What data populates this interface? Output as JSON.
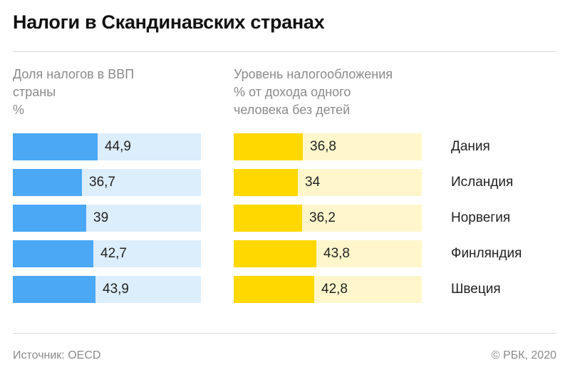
{
  "title": "Налоги в Скандинавских странах",
  "left_subtitle": [
    "Доля налогов в ВВП",
    "страны",
    "%"
  ],
  "right_subtitle": [
    "Уровень налогообложения",
    "% от дохода одного",
    "человека без детей"
  ],
  "source": "Источник: OECD",
  "copyright": "© РБК, 2020",
  "colors": {
    "left_fill": "#4aa8f5",
    "left_track": "#dcedfb",
    "right_fill": "#ffd800",
    "right_track": "#fff6cc"
  },
  "chart_data": [
    {
      "type": "bar",
      "orientation": "horizontal",
      "title": "Доля налогов в ВВП страны, %",
      "categories": [
        "Дания",
        "Исландия",
        "Норвегия",
        "Финляндия",
        "Швеция"
      ],
      "values": [
        44.9,
        36.7,
        39,
        42.7,
        43.9
      ],
      "labels": [
        "44,9",
        "36,7",
        "39",
        "42,7",
        "43,9"
      ]
    },
    {
      "type": "bar",
      "orientation": "horizontal",
      "title": "Уровень налогообложения, % от дохода одного человека без детей",
      "categories": [
        "Дания",
        "Исландия",
        "Норвегия",
        "Финляндия",
        "Швеция"
      ],
      "values": [
        36.8,
        34,
        36.2,
        43.8,
        42.8
      ],
      "labels": [
        "36,8",
        "34",
        "36,2",
        "43,8",
        "42,8"
      ]
    }
  ]
}
